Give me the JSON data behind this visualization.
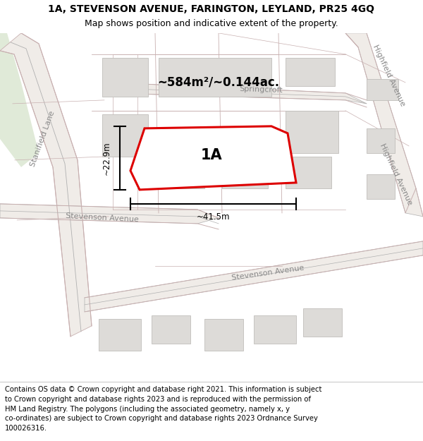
{
  "title_line1": "1A, STEVENSON AVENUE, FARINGTON, LEYLAND, PR25 4GQ",
  "title_line2": "Map shows position and indicative extent of the property.",
  "footer_text_lines": [
    "Contains OS data © Crown copyright and database right 2021. This information is subject",
    "to Crown copyright and database rights 2023 and is reproduced with the permission of",
    "HM Land Registry. The polygons (including the associated geometry, namely x, y",
    "co-ordinates) are subject to Crown copyright and database rights 2023 Ordnance Survey",
    "100026316."
  ],
  "map_bg": "#f5f2ee",
  "building_face": "#dddbd8",
  "building_edge": "#c0bebb",
  "road_outline": "#c8b0b0",
  "road_center_bg": "#f0ece8",
  "road_grey_line": "#b0b0b0",
  "green_color": "#e0ead8",
  "plot_color": "#dd0000",
  "plot_fill": "white",
  "plot_label": "1A",
  "area_text": "~584m²/~0.144ac.",
  "dim_width": "~41.5m",
  "dim_height": "~22.9m",
  "title_fontsize": 10,
  "subtitle_fontsize": 9,
  "footer_fontsize": 7.2,
  "street_label_color": "#888888",
  "street_label_size": 8
}
